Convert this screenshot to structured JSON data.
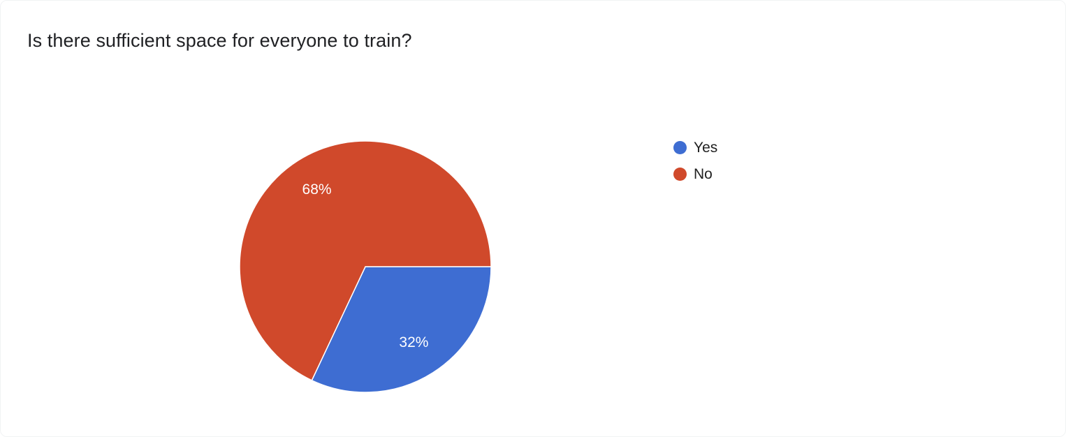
{
  "title": "Is there sufficient space for everyone to train?",
  "legend": {
    "items": [
      {
        "label": "Yes",
        "color": "#3E6DD2"
      },
      {
        "label": "No",
        "color": "#D0492B"
      }
    ]
  },
  "chart_data": {
    "type": "pie",
    "title": "Is there sufficient space for everyone to train?",
    "labels": [
      "Yes",
      "No"
    ],
    "values": [
      32,
      68
    ],
    "value_labels": [
      "32%",
      "68%"
    ],
    "colors": [
      "#3E6DD2",
      "#D0492B"
    ],
    "start_angle_deg": 0,
    "direction": "clockwise",
    "legend_position": "right",
    "slice_label_color": "#ffffff",
    "slice_label_radius_ratio": 0.72
  }
}
